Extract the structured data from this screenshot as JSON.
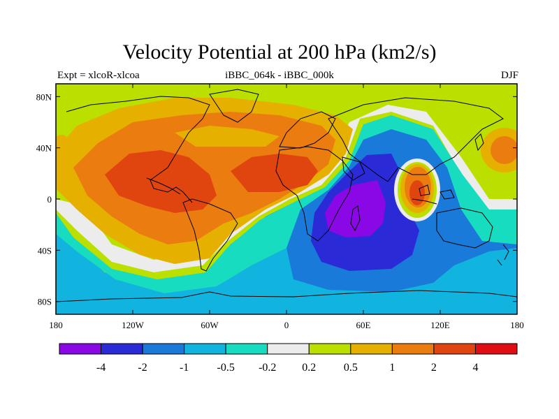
{
  "title": "Velocity Potential at 200 hPa (km2/s)",
  "subtitle_left": "Expt = xlcoR-xlcoa",
  "subtitle_center": "iBBC_064k - iBBC_000k",
  "subtitle_right": "DJF",
  "chart_data": {
    "type": "filled-contour-map",
    "title": "Velocity Potential at 200 hPa (km2/s)",
    "projection": "cylindrical equidistant",
    "lon_range": [
      -180,
      180
    ],
    "lat_range": [
      -90,
      90
    ],
    "x_ticks": [
      {
        "lon": -180,
        "label": "180"
      },
      {
        "lon": -120,
        "label": "120W"
      },
      {
        "lon": -60,
        "label": "60W"
      },
      {
        "lon": 0,
        "label": "0"
      },
      {
        "lon": 60,
        "label": "60E"
      },
      {
        "lon": 120,
        "label": "120E"
      },
      {
        "lon": 180,
        "label": "180"
      }
    ],
    "y_ticks": [
      {
        "lat": 80,
        "label": "80N"
      },
      {
        "lat": 40,
        "label": "40N"
      },
      {
        "lat": 0,
        "label": "0"
      },
      {
        "lat": -40,
        "label": "40S"
      },
      {
        "lat": -80,
        "label": "80S"
      }
    ],
    "levels": [
      -4,
      -2,
      -1,
      -0.5,
      -0.2,
      0.2,
      0.5,
      1,
      2,
      4
    ],
    "level_labels": [
      "-4",
      "-2",
      "-1",
      "-0.5",
      "-0.2",
      "0.2",
      "0.5",
      "1",
      "2",
      "4"
    ],
    "colorbar_colors": [
      "#8a08e6",
      "#2a2ad6",
      "#1a7ad9",
      "#11b4df",
      "#17dcc0",
      "#ececec",
      "#bbe000",
      "#e6b000",
      "#eb7c10",
      "#e04510",
      "#e10d14"
    ],
    "features": [
      {
        "name": "negative minimum over Indian Ocean (Madagascar)",
        "lon": 48,
        "lat": -18,
        "value": -4
      },
      {
        "name": "positive maximum over tropical East Pacific / Central America",
        "lon": -115,
        "lat": 5,
        "value": 2
      },
      {
        "name": "positive maximum over tropical Atlantic / Africa",
        "lon": -20,
        "lat": 15,
        "value": 2
      },
      {
        "name": "positive maximum over Indochina / Maritime Continent",
        "lon": 102,
        "lat": 5,
        "value": 2
      },
      {
        "name": "positive maximum over North Pacific",
        "lon": 170,
        "lat": 42,
        "value": 1
      }
    ]
  }
}
